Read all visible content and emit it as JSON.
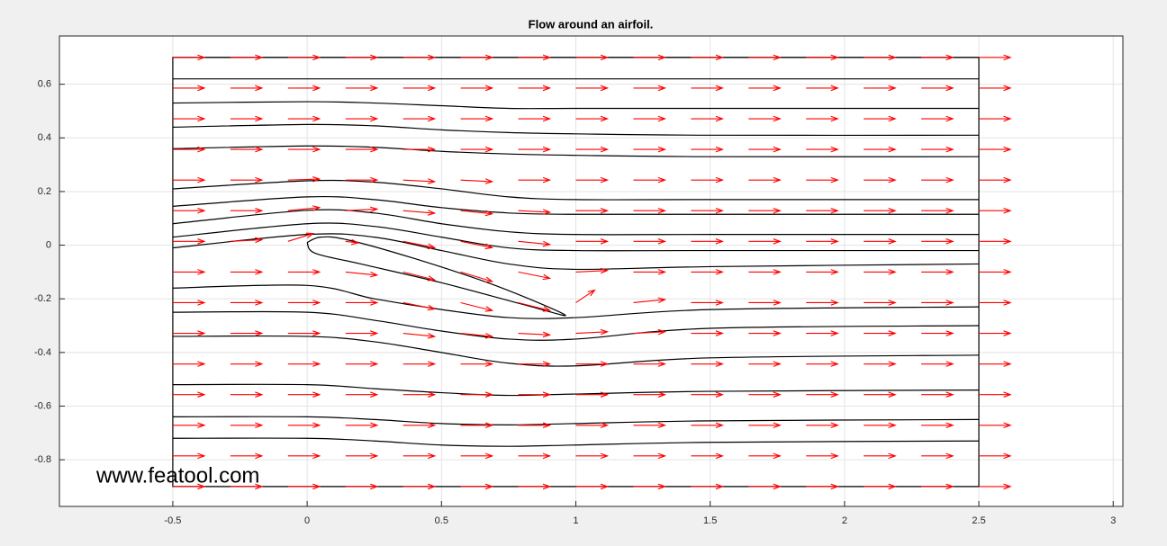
{
  "chart_data": {
    "type": "streamline",
    "title": "Flow around an airfoil.",
    "annotation": "www.featool.com",
    "xlim": [
      -0.922,
      3.036
    ],
    "ylim": [
      -0.974,
      0.78
    ],
    "xticks": [
      -0.5,
      0,
      0.5,
      1,
      1.5,
      2,
      2.5,
      3
    ],
    "yticks": [
      -0.8,
      -0.6,
      -0.4,
      -0.2,
      0,
      0.2,
      0.4,
      0.6
    ],
    "grid": true,
    "line_color": "#000000",
    "arrow_color": "#ff0000",
    "domain": {
      "x": [
        -0.5,
        2.5
      ],
      "y": [
        -0.9,
        0.7
      ]
    },
    "airfoil": {
      "x": [
        0,
        0.05,
        0.15,
        0.4,
        0.7,
        0.96,
        0.8,
        0.5,
        0.2,
        0.03,
        0
      ],
      "y": [
        0.01,
        0.03,
        0.02,
        -0.05,
        -0.15,
        -0.26,
        -0.22,
        -0.14,
        -0.07,
        -0.03,
        0.01
      ]
    },
    "streamlines": [
      {
        "x": [
          -0.5,
          0,
          0.25,
          0.5,
          0.75,
          1,
          1.5,
          2.5
        ],
        "y": [
          0.7,
          0.7,
          0.7,
          0.7,
          0.7,
          0.7,
          0.7,
          0.7
        ]
      },
      {
        "x": [
          -0.5,
          0,
          0.25,
          0.5,
          0.75,
          1,
          1.5,
          2.5
        ],
        "y": [
          0.62,
          0.62,
          0.62,
          0.62,
          0.62,
          0.62,
          0.62,
          0.62
        ]
      },
      {
        "x": [
          -0.5,
          0,
          0.25,
          0.5,
          0.75,
          1,
          1.5,
          2.5
        ],
        "y": [
          0.53,
          0.535,
          0.53,
          0.52,
          0.51,
          0.51,
          0.51,
          0.51
        ]
      },
      {
        "x": [
          -0.5,
          0,
          0.25,
          0.5,
          0.75,
          1,
          1.5,
          2.5
        ],
        "y": [
          0.44,
          0.45,
          0.445,
          0.43,
          0.42,
          0.415,
          0.41,
          0.41
        ]
      },
      {
        "x": [
          -0.5,
          0,
          0.25,
          0.5,
          0.75,
          1,
          1.5,
          2.5
        ],
        "y": [
          0.36,
          0.37,
          0.365,
          0.35,
          0.34,
          0.335,
          0.33,
          0.33
        ]
      },
      {
        "x": [
          -0.5,
          0,
          0.25,
          0.5,
          0.75,
          1,
          1.5,
          2.5
        ],
        "y": [
          0.21,
          0.24,
          0.235,
          0.21,
          0.18,
          0.17,
          0.17,
          0.17
        ]
      },
      {
        "x": [
          -0.5,
          0,
          0.25,
          0.5,
          0.75,
          1,
          1.5,
          2.5
        ],
        "y": [
          0.145,
          0.18,
          0.17,
          0.14,
          0.12,
          0.115,
          0.115,
          0.115
        ]
      },
      {
        "x": [
          -0.5,
          0,
          0.25,
          0.5,
          0.75,
          1,
          1.5,
          2.5
        ],
        "y": [
          0.08,
          0.13,
          0.12,
          0.08,
          0.05,
          0.04,
          0.04,
          0.04
        ]
      },
      {
        "x": [
          -0.5,
          0,
          0.25,
          0.5,
          0.75,
          1,
          1.5,
          2.5
        ],
        "y": [
          0.03,
          0.08,
          0.07,
          0.03,
          -0.01,
          -0.02,
          -0.02,
          -0.02
        ]
      },
      {
        "x": [
          -0.5,
          0,
          0.25,
          0.5,
          0.75,
          1,
          1.5,
          2.5
        ],
        "y": [
          -0.01,
          0.04,
          0.03,
          -0.02,
          -0.07,
          -0.09,
          -0.08,
          -0.07
        ]
      },
      {
        "x": [
          -0.5,
          0,
          0.25,
          0.5,
          0.75,
          1,
          1.5,
          2.5
        ],
        "y": [
          -0.16,
          -0.15,
          -0.2,
          -0.24,
          -0.27,
          -0.27,
          -0.24,
          -0.23
        ]
      },
      {
        "x": [
          -0.5,
          0,
          0.25,
          0.5,
          0.75,
          1,
          1.5,
          2.5
        ],
        "y": [
          -0.25,
          -0.25,
          -0.28,
          -0.32,
          -0.35,
          -0.35,
          -0.31,
          -0.3
        ]
      },
      {
        "x": [
          -0.5,
          0,
          0.25,
          0.5,
          0.75,
          1,
          1.5,
          2.5
        ],
        "y": [
          -0.34,
          -0.34,
          -0.36,
          -0.4,
          -0.44,
          -0.45,
          -0.42,
          -0.41
        ]
      },
      {
        "x": [
          -0.5,
          0,
          0.25,
          0.5,
          0.75,
          1,
          1.5,
          2.5
        ],
        "y": [
          -0.52,
          -0.52,
          -0.535,
          -0.55,
          -0.56,
          -0.555,
          -0.545,
          -0.54
        ]
      },
      {
        "x": [
          -0.5,
          0,
          0.25,
          0.5,
          0.75,
          1,
          1.5,
          2.5
        ],
        "y": [
          -0.64,
          -0.64,
          -0.65,
          -0.665,
          -0.67,
          -0.665,
          -0.655,
          -0.65
        ]
      },
      {
        "x": [
          -0.5,
          0,
          0.25,
          0.5,
          0.75,
          1,
          1.5,
          2.5
        ],
        "y": [
          -0.72,
          -0.72,
          -0.73,
          -0.745,
          -0.75,
          -0.745,
          -0.735,
          -0.73
        ]
      },
      {
        "x": [
          -0.5,
          0,
          0.25,
          0.5,
          0.75,
          1,
          1.5,
          2.5
        ],
        "y": [
          -0.9,
          -0.9,
          -0.9,
          -0.9,
          -0.9,
          -0.9,
          -0.9,
          -0.9
        ]
      }
    ],
    "quiver": {
      "x": [
        -0.5,
        -0.2857,
        -0.0714,
        0.1429,
        0.3571,
        0.5714,
        0.7857,
        1,
        1.2143,
        1.4286,
        1.6429,
        1.8571,
        2.0714,
        2.2857,
        2.5
      ],
      "y": [
        0.7,
        0.5857,
        0.4714,
        0.3571,
        0.2429,
        0.1286,
        0.0143,
        -0.1,
        -0.2143,
        -0.3286,
        -0.4429,
        -0.5571,
        -0.6714,
        -0.7857,
        -0.9
      ],
      "u": [
        [
          1,
          1,
          1,
          1,
          1,
          1,
          1,
          1,
          1,
          1,
          1,
          1,
          1,
          1,
          1
        ],
        [
          1,
          1,
          1,
          1,
          1,
          1,
          1,
          1,
          1,
          1,
          1,
          1,
          1,
          1,
          1
        ],
        [
          1,
          1,
          1,
          1,
          1,
          1,
          1,
          1,
          1,
          1,
          1,
          1,
          1,
          1,
          1
        ],
        [
          1,
          1,
          1,
          1,
          1,
          1,
          1,
          1,
          1,
          1,
          1,
          1,
          1,
          1,
          1
        ],
        [
          1,
          1,
          1,
          1,
          1,
          1,
          1,
          1,
          1,
          1,
          1,
          1,
          1,
          1,
          1
        ],
        [
          1,
          1,
          1,
          1,
          1,
          1,
          1,
          1,
          1,
          1,
          1,
          1,
          1,
          1,
          1
        ],
        [
          1,
          1,
          0.8,
          0.4,
          1,
          1,
          1,
          1,
          1,
          1,
          1,
          1,
          1,
          1,
          1
        ],
        [
          1,
          1,
          1,
          1,
          1,
          1,
          1,
          1,
          1,
          1,
          1,
          1,
          1,
          1,
          1
        ],
        [
          1,
          1,
          1,
          1,
          1,
          1,
          1,
          0.6,
          1,
          1,
          1,
          1,
          1,
          1,
          1
        ],
        [
          1,
          1,
          1,
          1,
          1,
          1,
          1,
          1,
          1,
          1,
          1,
          1,
          1,
          1,
          1
        ],
        [
          1,
          1,
          1,
          1,
          1,
          1,
          1,
          1,
          1,
          1,
          1,
          1,
          1,
          1,
          1
        ],
        [
          1,
          1,
          1,
          1,
          1,
          1,
          1,
          1,
          1,
          1,
          1,
          1,
          1,
          1,
          1
        ],
        [
          1,
          1,
          1,
          1,
          1,
          1,
          1,
          1,
          1,
          1,
          1,
          1,
          1,
          1,
          1
        ],
        [
          1,
          1,
          1,
          1,
          1,
          1,
          1,
          1,
          1,
          1,
          1,
          1,
          1,
          1,
          1
        ],
        [
          1,
          1,
          1,
          1,
          1,
          1,
          1,
          1,
          1,
          1,
          1,
          1,
          1,
          1,
          1
        ]
      ],
      "v": [
        [
          0,
          0,
          0,
          0,
          0,
          0,
          0,
          0,
          0,
          0,
          0,
          0,
          0,
          0,
          0
        ],
        [
          0,
          0,
          0,
          0,
          0,
          0,
          0,
          0,
          0,
          0,
          0,
          0,
          0,
          0,
          0
        ],
        [
          0,
          0,
          0,
          0,
          0,
          0,
          0,
          0,
          0,
          0,
          0,
          0,
          0,
          0,
          0
        ],
        [
          0,
          0,
          0,
          0,
          0,
          0,
          0,
          0,
          0,
          0,
          0,
          0,
          0,
          0,
          0
        ],
        [
          0,
          0,
          0.03,
          0,
          -0.05,
          -0.05,
          0,
          0,
          0,
          0,
          0,
          0,
          0,
          0,
          0
        ],
        [
          0,
          0,
          0.1,
          0.05,
          -0.08,
          -0.1,
          -0.05,
          0,
          0,
          0,
          0,
          0,
          0,
          0,
          0
        ],
        [
          0,
          0.05,
          0.25,
          -0.05,
          -0.2,
          -0.2,
          -0.1,
          0,
          0,
          0,
          0,
          0,
          0,
          0,
          0
        ],
        [
          0,
          0,
          0,
          -0.1,
          -0.25,
          -0.3,
          -0.2,
          0.05,
          0,
          0,
          0,
          0,
          0,
          0,
          0
        ],
        [
          0,
          0,
          0,
          0,
          -0.2,
          -0.25,
          -0.25,
          0.4,
          0.1,
          0,
          0,
          0,
          0,
          0,
          0
        ],
        [
          0,
          0,
          0,
          0,
          -0.1,
          -0.1,
          -0.05,
          0.05,
          0.05,
          0,
          0,
          0,
          0,
          0,
          0
        ],
        [
          0,
          0,
          0,
          0,
          0,
          0,
          0,
          0,
          0,
          0,
          0,
          0,
          0,
          0,
          0
        ],
        [
          0,
          0,
          0,
          0,
          0,
          0,
          0,
          0,
          0,
          0,
          0,
          0,
          0,
          0,
          0
        ],
        [
          0,
          0,
          0,
          0,
          0,
          0,
          0,
          0,
          0,
          0,
          0,
          0,
          0,
          0,
          0
        ],
        [
          0,
          0,
          0,
          0,
          0,
          0,
          0,
          0,
          0,
          0,
          0,
          0,
          0,
          0,
          0
        ],
        [
          0,
          0,
          0,
          0,
          0,
          0,
          0,
          0,
          0,
          0,
          0,
          0,
          0,
          0,
          0
        ]
      ]
    }
  }
}
